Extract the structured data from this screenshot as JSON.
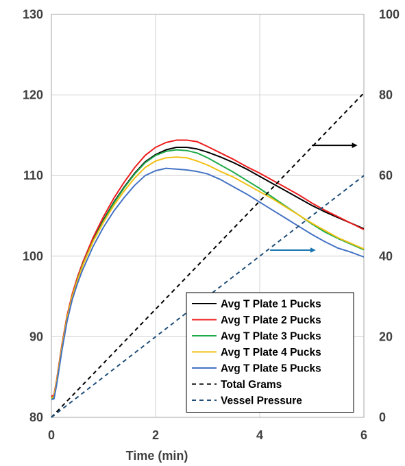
{
  "chart_data": {
    "type": "line",
    "title": "",
    "xlabel": "Time (min)",
    "ylabel": "",
    "y2label": "",
    "xlim": [
      0,
      6
    ],
    "ylim": [
      80,
      130
    ],
    "y2lim": [
      0,
      100
    ],
    "x_ticks": [
      "0",
      "2",
      "4",
      "6"
    ],
    "y_ticks": [
      "80",
      "90",
      "100",
      "110",
      "120",
      "130"
    ],
    "y2_ticks": [
      "0",
      "20",
      "40",
      "60",
      "80",
      "100"
    ],
    "grid": true,
    "legend_position": "bottom-right",
    "series": [
      {
        "name": "Avg T Plate 1 Pucks",
        "color": "#000000",
        "dash": "solid",
        "axis": "left",
        "x": [
          0,
          0.05,
          0.1,
          0.2,
          0.3,
          0.4,
          0.5,
          0.6,
          0.8,
          1.0,
          1.2,
          1.4,
          1.6,
          1.8,
          2.0,
          2.2,
          2.4,
          2.6,
          2.8,
          3.0,
          3.25,
          3.5,
          3.75,
          4.0,
          4.25,
          4.5,
          4.75,
          5.0,
          5.25,
          5.5,
          5.75,
          6.0
        ],
        "y": [
          82.5,
          82.7,
          84.5,
          88.8,
          92.5,
          95.2,
          97.2,
          99.0,
          102.0,
          104.5,
          106.7,
          108.6,
          110.3,
          111.7,
          112.6,
          113.2,
          113.5,
          113.5,
          113.3,
          112.9,
          112.3,
          111.6,
          110.8,
          109.9,
          109.0,
          108.1,
          107.2,
          106.3,
          105.5,
          104.8,
          104.1,
          103.4
        ]
      },
      {
        "name": "Avg T Plate 2 Pucks",
        "color": "#ee1c1c",
        "dash": "solid",
        "axis": "left",
        "x": [
          0,
          0.05,
          0.1,
          0.2,
          0.3,
          0.4,
          0.5,
          0.6,
          0.8,
          1.0,
          1.2,
          1.4,
          1.6,
          1.8,
          2.0,
          2.2,
          2.4,
          2.6,
          2.8,
          3.0,
          3.25,
          3.5,
          3.75,
          4.0,
          4.25,
          4.5,
          4.75,
          5.0,
          5.25,
          5.5,
          5.75,
          6.0
        ],
        "y": [
          82.6,
          82.8,
          84.6,
          88.9,
          92.6,
          95.3,
          97.4,
          99.2,
          102.3,
          104.9,
          107.2,
          109.2,
          111.0,
          112.5,
          113.5,
          114.1,
          114.4,
          114.4,
          114.2,
          113.6,
          112.8,
          112.0,
          111.1,
          110.3,
          109.4,
          108.5,
          107.6,
          106.6,
          105.7,
          104.9,
          104.1,
          103.3
        ]
      },
      {
        "name": "Avg T Plate 3 Pucks",
        "color": "#1faa4a",
        "dash": "solid",
        "axis": "left",
        "x": [
          0,
          0.05,
          0.1,
          0.2,
          0.3,
          0.4,
          0.5,
          0.6,
          0.8,
          1.0,
          1.2,
          1.4,
          1.6,
          1.8,
          2.0,
          2.2,
          2.4,
          2.6,
          2.8,
          3.0,
          3.25,
          3.5,
          3.75,
          4.0,
          4.25,
          4.5,
          4.75,
          5.0,
          5.25,
          5.5,
          5.75,
          6.0
        ],
        "y": [
          82.3,
          82.5,
          84.3,
          88.6,
          92.3,
          95.0,
          97.1,
          98.9,
          101.9,
          104.4,
          106.6,
          108.5,
          110.2,
          111.6,
          112.5,
          113.0,
          113.2,
          113.1,
          112.8,
          112.2,
          111.3,
          110.4,
          109.4,
          108.4,
          107.3,
          106.2,
          105.1,
          104.0,
          103.0,
          102.2,
          101.5,
          100.8
        ]
      },
      {
        "name": "Avg T Plate 4 Pucks",
        "color": "#f2c014",
        "dash": "solid",
        "axis": "left",
        "x": [
          0,
          0.05,
          0.1,
          0.2,
          0.3,
          0.4,
          0.5,
          0.6,
          0.8,
          1.0,
          1.2,
          1.4,
          1.6,
          1.8,
          2.0,
          2.2,
          2.4,
          2.6,
          2.8,
          3.0,
          3.25,
          3.5,
          3.75,
          4.0,
          4.25,
          4.5,
          4.75,
          5.0,
          5.25,
          5.5,
          5.75,
          6.0
        ],
        "y": [
          82.4,
          82.6,
          84.4,
          88.6,
          92.3,
          95.0,
          97.0,
          98.8,
          101.8,
          104.2,
          106.3,
          108.1,
          109.7,
          111.0,
          111.8,
          112.2,
          112.3,
          112.2,
          111.8,
          111.3,
          110.5,
          109.8,
          108.9,
          108.0,
          107.1,
          106.1,
          105.1,
          104.1,
          103.2,
          102.3,
          101.6,
          100.9
        ]
      },
      {
        "name": "Avg T Plate 5 Pucks",
        "color": "#4472c4",
        "dash": "solid",
        "axis": "left",
        "x": [
          0,
          0.05,
          0.1,
          0.2,
          0.3,
          0.4,
          0.5,
          0.6,
          0.8,
          1.0,
          1.2,
          1.4,
          1.6,
          1.8,
          2.0,
          2.2,
          2.4,
          2.6,
          2.8,
          3.0,
          3.25,
          3.5,
          3.75,
          4.0,
          4.25,
          4.5,
          4.75,
          5.0,
          5.25,
          5.5,
          5.75,
          6.0
        ],
        "y": [
          82.2,
          82.3,
          84.0,
          88.2,
          91.9,
          94.6,
          96.6,
          98.3,
          101.2,
          103.6,
          105.6,
          107.3,
          108.8,
          110.0,
          110.6,
          110.9,
          110.8,
          110.7,
          110.5,
          110.2,
          109.5,
          108.6,
          107.7,
          106.7,
          105.7,
          104.7,
          103.7,
          102.7,
          101.8,
          101.0,
          100.5,
          99.9
        ]
      },
      {
        "name": "Total Grams",
        "color": "#000000",
        "dash": "dashed",
        "axis": "right",
        "x": [
          0,
          6
        ],
        "y": [
          0,
          80.5
        ]
      },
      {
        "name": "Vessel Pressure",
        "color": "#1f4e79",
        "dash": "dashed",
        "axis": "right",
        "x": [
          0,
          6
        ],
        "y": [
          0,
          60
        ]
      }
    ],
    "annotations": [
      {
        "type": "arrow",
        "direction": "right",
        "color": "#000000",
        "from": [
          5.0,
          67.5
        ],
        "to": [
          5.85,
          67.5
        ],
        "axis": "right"
      },
      {
        "type": "arrow",
        "direction": "right",
        "color": "#1a75b0",
        "from": [
          4.2,
          41.5
        ],
        "to": [
          5.05,
          41.5
        ],
        "axis": "right"
      }
    ]
  }
}
